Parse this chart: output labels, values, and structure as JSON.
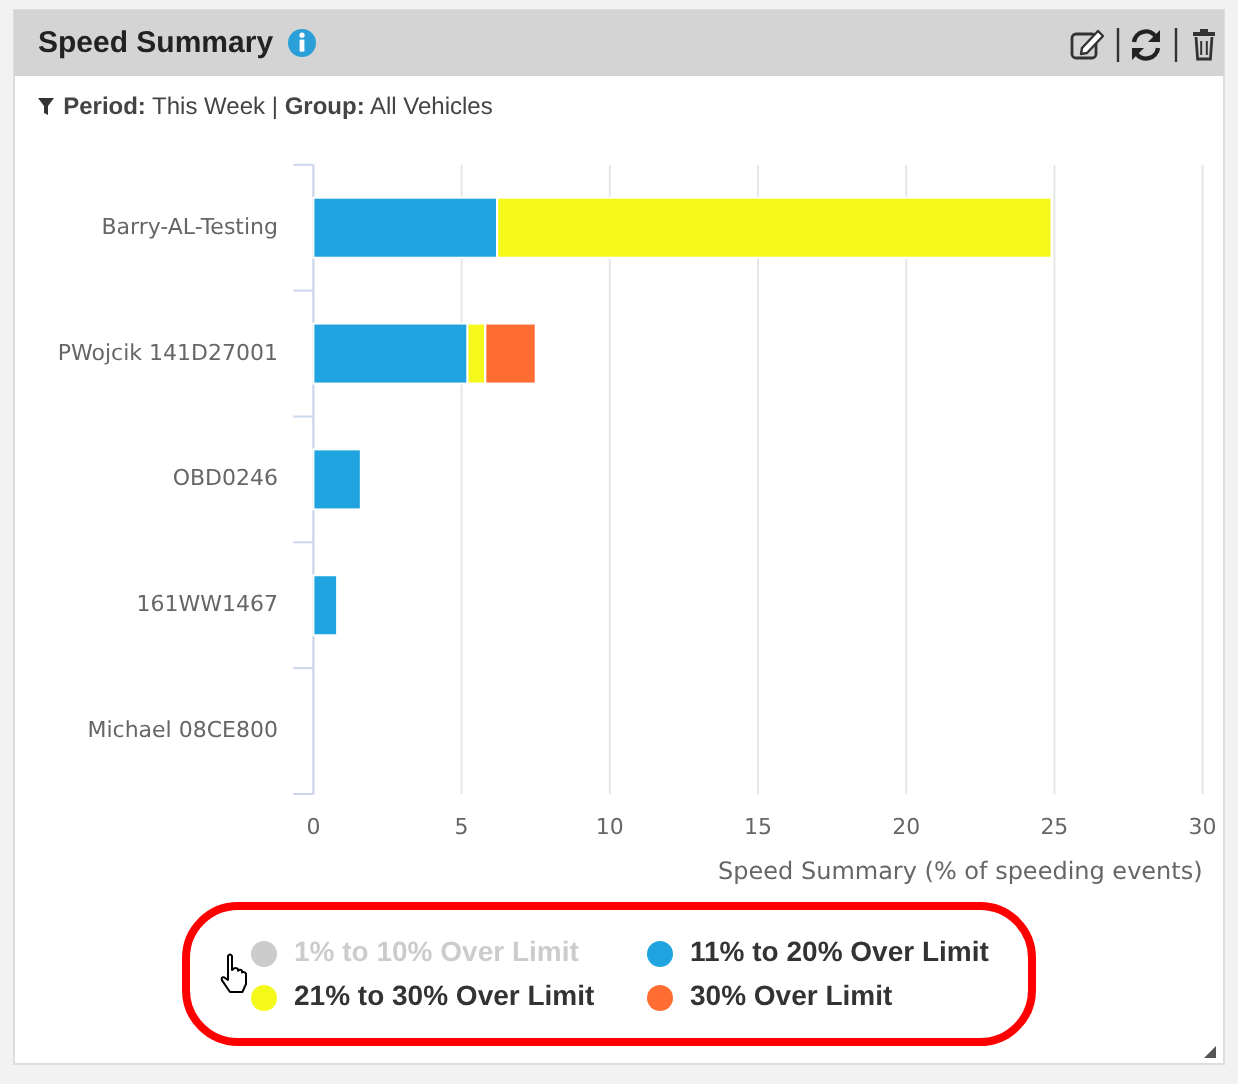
{
  "chart_data": {
    "type": "bar",
    "title": "Speed Summary",
    "subtitle": "Period: This Week | Group: All Vehicles",
    "xlabel": "Speed Summary (% of speeding events)",
    "categories": [
      "Barry-AL-Testing",
      "PWojcik 141D27001",
      "OBD0246",
      "161WW1467",
      "Michael 08CE800"
    ],
    "series": [
      {
        "name": "1% to 10% Over Limit",
        "color": "#cccccc",
        "values": [
          null,
          null,
          null,
          null,
          null
        ]
      },
      {
        "name": "11% to 20% Over Limit",
        "color": "#20a4df",
        "values": [
          6.2,
          5.2,
          1.6,
          0.8,
          null
        ]
      },
      {
        "name": "21% to 30% Over Limit",
        "color": "#f5f91b",
        "values": [
          18.7,
          0.6,
          null,
          null,
          null
        ]
      },
      {
        "name": "30% Over Limit",
        "color": "#ff6d33",
        "values": [
          null,
          1.7,
          null,
          null,
          null
        ]
      }
    ],
    "stacked": true,
    "orientation": "horizontal",
    "xlim": [
      0,
      30
    ],
    "xticks": [
      0,
      5,
      10,
      15,
      20,
      25,
      30
    ],
    "grid": "x",
    "legend": "bottom"
  }
}
